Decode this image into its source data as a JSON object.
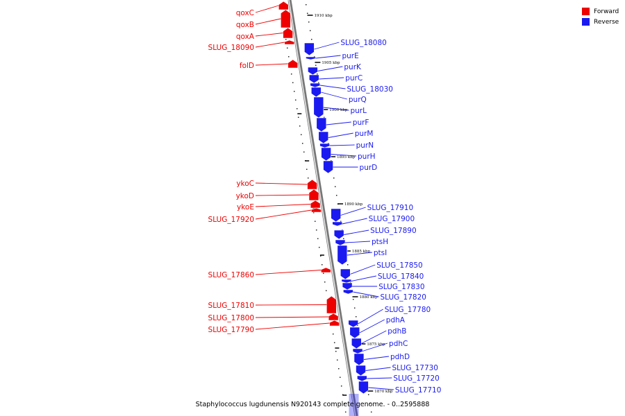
{
  "legend": {
    "forward": {
      "label": "Forward",
      "color": "#ee0000"
    },
    "reverse": {
      "label": "Reverse",
      "color": "#1a1af0"
    }
  },
  "caption": "Staphylococcus lugdunensis N920143 complete genome. - 0..2595888",
  "ticks": [
    "1910 kbp",
    "1905 kbp",
    "1900 kbp",
    "1895 kbp",
    "1890 kbp",
    "1885 kbp",
    "1880 kbp",
    "1875 kbp",
    "1870 kbp"
  ],
  "forward_genes": [
    "qoxC",
    "qoxB",
    "qoxA",
    "SLUG_18090",
    "folD",
    "ykoC",
    "ykoD",
    "ykoE",
    "SLUG_17920",
    "SLUG_17860",
    "SLUG_17810",
    "SLUG_17800",
    "SLUG_17790"
  ],
  "reverse_genes": [
    "SLUG_18080",
    "purE",
    "purK",
    "purC",
    "SLUG_18030",
    "purQ",
    "purL",
    "purF",
    "purM",
    "purN",
    "purH",
    "purD",
    "SLUG_17910",
    "SLUG_17900",
    "SLUG_17890",
    "ptsH",
    "ptsI",
    "SLUG_17850",
    "SLUG_17840",
    "SLUG_17830",
    "SLUG_17820",
    "SLUG_17780",
    "pdhA",
    "pdhB",
    "pdhC",
    "pdhD",
    "SLUG_17730",
    "SLUG_17720",
    "SLUG_17710"
  ]
}
